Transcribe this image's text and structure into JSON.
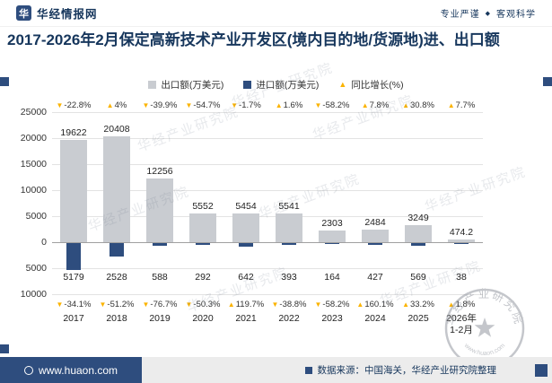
{
  "header": {
    "logo_glyph": "华",
    "brand": "华经情报网",
    "slogan_left": "专业严谨",
    "slogan_sep": "◆",
    "slogan_right": "客观科学"
  },
  "title": "2017-2026年2月保定高新技术产业开发区(境内目的地/货源地)进、出口额",
  "legend": [
    {
      "label": "出口额(万美元)",
      "marker": "square",
      "color": "#c9ccd1"
    },
    {
      "label": "进口额(万美元)",
      "marker": "square",
      "color": "#2e4d7e"
    },
    {
      "label": "同比增长(%)",
      "marker": "triangle",
      "color": "#fbb300"
    }
  ],
  "chart_data": {
    "type": "bar",
    "title": "2017-2026年2月保定高新技术产业开发区(境内目的地/货源地)进、出口额",
    "unit": "万美元",
    "categories": [
      "2017",
      "2018",
      "2019",
      "2020",
      "2021",
      "2022",
      "2023",
      "2024",
      "2025",
      "2026年\n1-2月"
    ],
    "series": [
      {
        "name": "出口额(万美元)",
        "type": "bar",
        "direction": "up",
        "color": "#c9ccd1",
        "values": [
          19622,
          20408,
          12256,
          5552,
          5454,
          5541,
          2303,
          2484,
          3249,
          474.2
        ]
      },
      {
        "name": "进口额(万美元)",
        "type": "bar",
        "direction": "down",
        "color": "#2e4d7e",
        "values": [
          5179,
          2528,
          588,
          292,
          642,
          393,
          164,
          427,
          569,
          38
        ]
      },
      {
        "name": "出口额同比增长(%)",
        "type": "marker",
        "color": "#fbb300",
        "values": [
          -22.8,
          4,
          -39.9,
          -54.7,
          -1.7,
          1.6,
          -58.2,
          7.8,
          30.8,
          7.7
        ]
      },
      {
        "name": "进口额同比增长(%)",
        "type": "marker",
        "color": "#fbb300",
        "values": [
          -34.1,
          -51.2,
          -76.7,
          -50.3,
          119.7,
          -38.8,
          -58.2,
          160.1,
          33.2,
          1.8
        ]
      }
    ],
    "y_ticks": [
      "25000",
      "20000",
      "15000",
      "10000",
      "5000",
      "0",
      "5000",
      "10000"
    ],
    "ylim_up": [
      0,
      25000
    ],
    "ylim_down": [
      0,
      10000
    ],
    "grid": true,
    "legend_position": "top"
  },
  "watermark": {
    "text": "华经产业研究院",
    "stamp_text": "华经产业研究院",
    "stamp_sub": "www.huaon.com"
  },
  "footer": {
    "site": "www.huaon.com",
    "source": "数据来源：中国海关，华经产业研究院整理"
  }
}
